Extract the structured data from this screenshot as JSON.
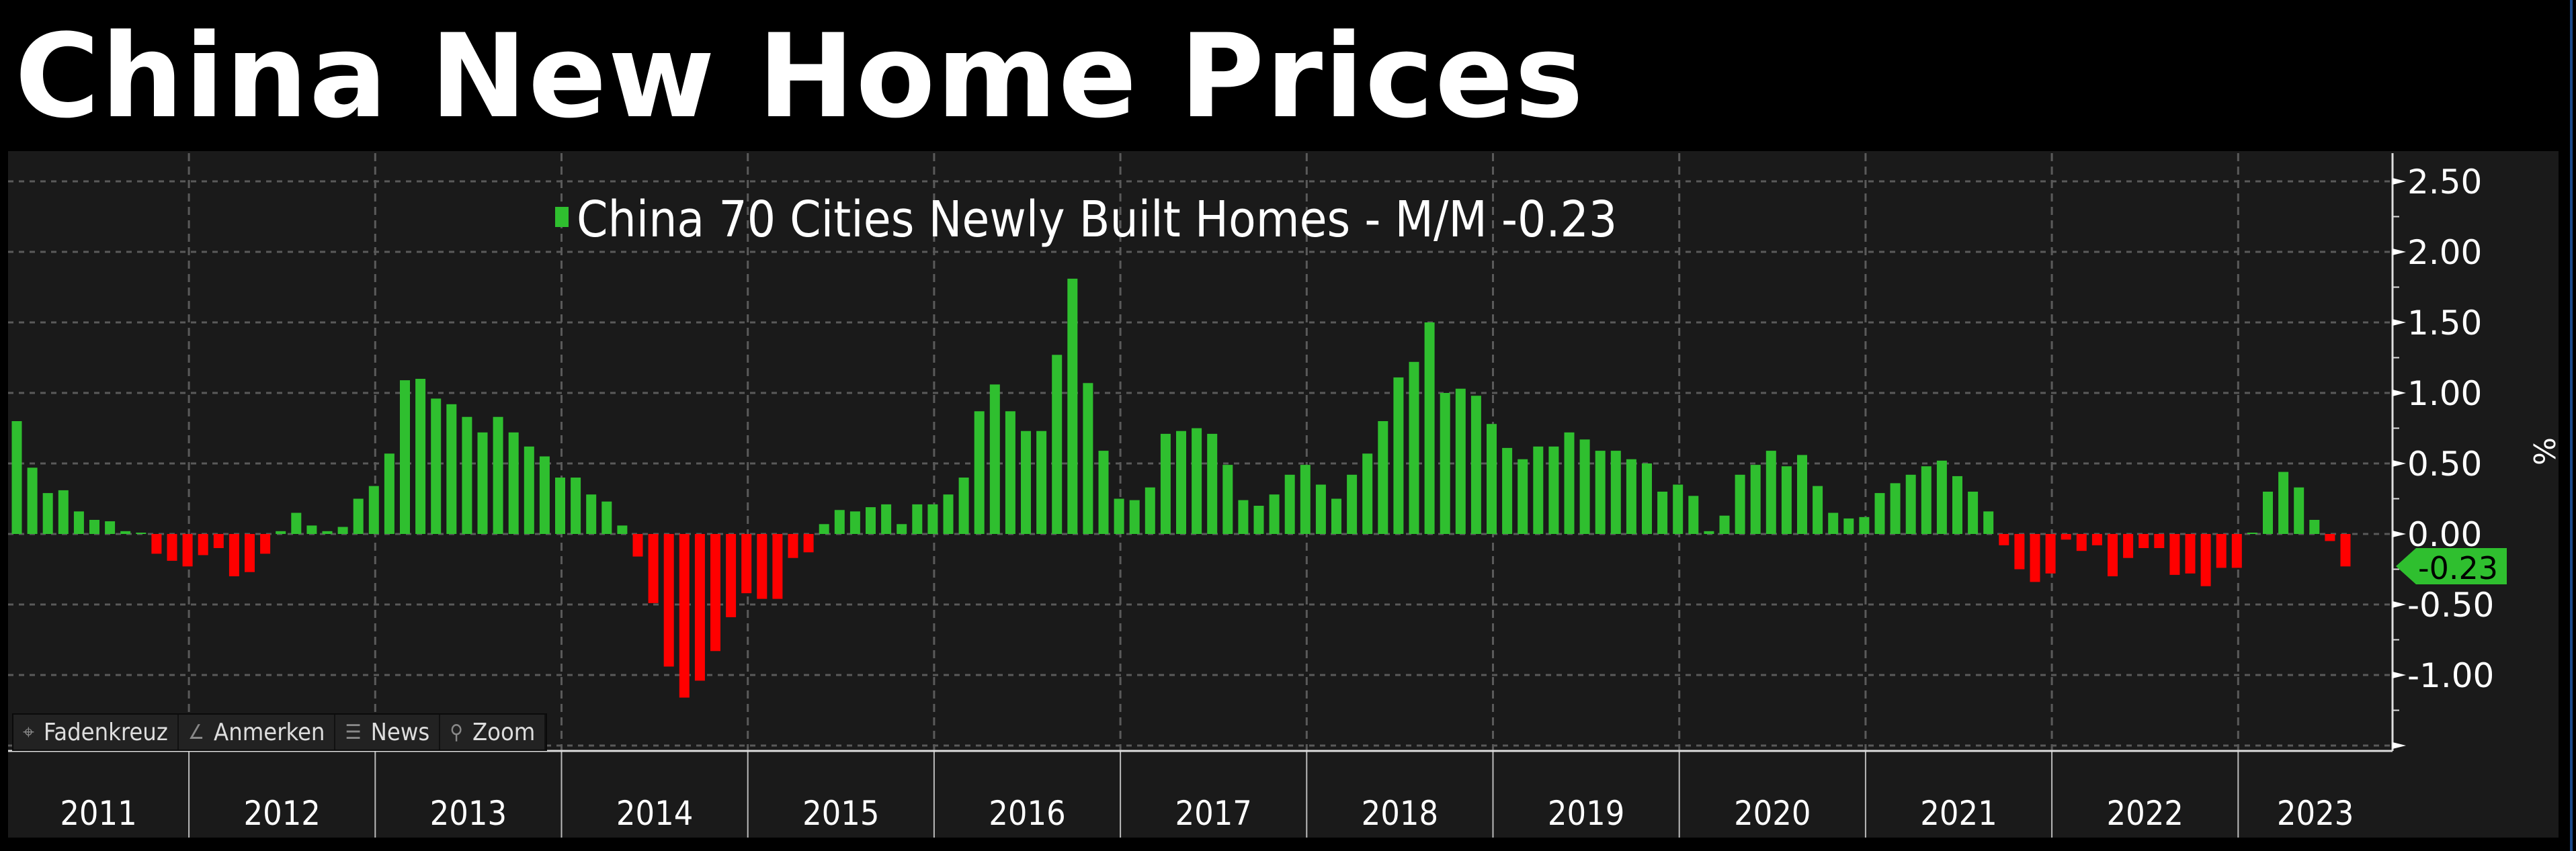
{
  "title": "China New Home Prices",
  "colors": {
    "positive": "#2fbf2f",
    "negative": "#ff0000",
    "panel": "#1a1a1a",
    "grid": "#5a5a5a",
    "tag": "#2fbf2f"
  },
  "toolbar": [
    {
      "label": "Fadenkreuz",
      "icon": "crosshair-icon",
      "glyph": "⌖"
    },
    {
      "label": "Anmerken",
      "icon": "pencil-icon",
      "glyph": "∠"
    },
    {
      "label": "News",
      "icon": "news-icon",
      "glyph": "☰"
    },
    {
      "label": "Zoom",
      "icon": "magnifier-icon",
      "glyph": "⚲"
    }
  ],
  "chart_data": {
    "type": "bar",
    "title": "China New Home Prices",
    "legend": "China 70 Cities Newly Built Homes - M/M -0.23",
    "legend_placement": "top-center",
    "ylabel": "%",
    "ylim": [
      -1.54,
      2.62
    ],
    "yticks": [
      "2.50",
      "2.00",
      "1.50",
      "1.00",
      "0.50",
      "0.00",
      "-0.50",
      "-1.00"
    ],
    "ytick_values": [
      2.5,
      2.0,
      1.5,
      1.0,
      0.5,
      0.0,
      -0.5,
      -1.0
    ],
    "grid": true,
    "last_value_label": "-0.23",
    "last_value": -0.23,
    "x_start": "2011-01",
    "x_end": "2023-07",
    "years": [
      "2011",
      "2012",
      "2013",
      "2014",
      "2015",
      "2016",
      "2017",
      "2018",
      "2019",
      "2020",
      "2021",
      "2022",
      "2023"
    ],
    "values": [
      0.8,
      0.47,
      0.29,
      0.31,
      0.16,
      0.1,
      0.09,
      0.02,
      0.0,
      -0.14,
      -0.19,
      -0.23,
      -0.15,
      -0.1,
      -0.3,
      -0.27,
      -0.14,
      0.02,
      0.15,
      0.06,
      0.02,
      0.05,
      0.25,
      0.34,
      0.57,
      1.09,
      1.1,
      0.96,
      0.92,
      0.83,
      0.72,
      0.83,
      0.72,
      0.62,
      0.55,
      0.4,
      0.4,
      0.28,
      0.23,
      0.06,
      -0.16,
      -0.49,
      -0.94,
      -1.16,
      -1.04,
      -0.83,
      -0.59,
      -0.42,
      -0.46,
      -0.46,
      -0.17,
      -0.13,
      0.07,
      0.17,
      0.16,
      0.19,
      0.21,
      0.07,
      0.21,
      0.21,
      0.28,
      0.4,
      0.87,
      1.06,
      0.87,
      0.73,
      0.73,
      1.27,
      1.81,
      1.07,
      0.59,
      0.25,
      0.24,
      0.33,
      0.71,
      0.73,
      0.75,
      0.71,
      0.49,
      0.24,
      0.2,
      0.28,
      0.42,
      0.49,
      0.35,
      0.25,
      0.42,
      0.57,
      0.8,
      1.11,
      1.22,
      1.5,
      1.0,
      1.03,
      0.98,
      0.78,
      0.61,
      0.53,
      0.62,
      0.62,
      0.72,
      0.67,
      0.59,
      0.59,
      0.53,
      0.5,
      0.3,
      0.35,
      0.27,
      0.02,
      0.13,
      0.42,
      0.49,
      0.59,
      0.48,
      0.56,
      0.34,
      0.15,
      0.11,
      0.12,
      0.29,
      0.36,
      0.42,
      0.48,
      0.52,
      0.41,
      0.3,
      0.16,
      -0.08,
      -0.25,
      -0.34,
      -0.28,
      -0.04,
      -0.12,
      -0.08,
      -0.3,
      -0.17,
      -0.1,
      -0.1,
      -0.29,
      -0.28,
      -0.37,
      -0.24,
      -0.24,
      0.0,
      0.3,
      0.44,
      0.33,
      0.1,
      -0.05,
      -0.23
    ]
  }
}
